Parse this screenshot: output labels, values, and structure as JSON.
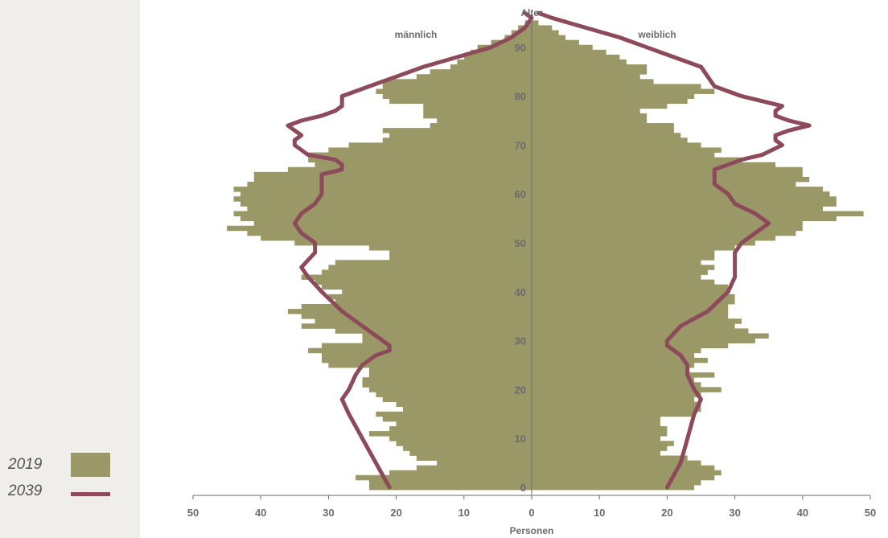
{
  "legend": {
    "items": [
      {
        "label": "2019",
        "kind": "bar",
        "color": "#9a9866"
      },
      {
        "label": "2039",
        "kind": "line",
        "color": "#8c4a5a"
      }
    ]
  },
  "chart_data": {
    "type": "bar",
    "orientation": "horizontal-butterfly",
    "title": "Alter",
    "xlabel": "Personen",
    "ylabel": "Alter",
    "left_group": "männlich",
    "right_group": "weiblich",
    "x_ticks": [
      "50",
      "40",
      "30",
      "20",
      "10",
      "0",
      "10",
      "20",
      "30",
      "40",
      "50"
    ],
    "xlim": [
      -50,
      50
    ],
    "y_ticks": [
      "0",
      "10",
      "20",
      "30",
      "40",
      "50",
      "60",
      "70",
      "80",
      "90"
    ],
    "ylim": [
      0,
      97
    ],
    "grid": false,
    "legend_position": "bottom-left",
    "colors": {
      "bars_2019": "#9a9866",
      "line_2039": "#8c4a5a",
      "axis": "#6b6b6b"
    },
    "bars_2019": {
      "ages": [
        0,
        1,
        2,
        3,
        4,
        5,
        6,
        7,
        8,
        9,
        10,
        11,
        12,
        13,
        14,
        15,
        16,
        17,
        18,
        19,
        20,
        21,
        22,
        23,
        24,
        25,
        26,
        27,
        28,
        29,
        30,
        31,
        32,
        33,
        34,
        35,
        36,
        37,
        38,
        39,
        40,
        41,
        42,
        43,
        44,
        45,
        46,
        47,
        48,
        49,
        50,
        51,
        52,
        53,
        54,
        55,
        56,
        57,
        58,
        59,
        60,
        61,
        62,
        63,
        64,
        65,
        66,
        67,
        68,
        69,
        70,
        71,
        72,
        73,
        74,
        75,
        76,
        77,
        78,
        79,
        80,
        81,
        82,
        83,
        84,
        85,
        86,
        87,
        88,
        89,
        90,
        91,
        92,
        93,
        94,
        95
      ],
      "male": [
        24,
        24,
        26,
        21,
        17,
        14,
        17,
        18,
        19,
        20,
        21,
        24,
        21,
        20,
        22,
        23,
        19,
        20,
        22,
        23,
        24,
        25,
        25,
        24,
        24,
        30,
        31,
        31,
        33,
        31,
        25,
        25,
        29,
        34,
        32,
        34,
        36,
        34,
        29,
        30,
        28,
        31,
        32,
        34,
        31,
        30,
        29,
        21,
        21,
        24,
        35,
        40,
        42,
        45,
        41,
        43,
        44,
        42,
        43,
        44,
        43,
        44,
        42,
        41,
        41,
        36,
        32,
        33,
        33,
        30,
        27,
        22,
        21,
        22,
        15,
        14,
        16,
        16,
        16,
        21,
        22,
        23,
        22,
        22,
        17,
        15,
        12,
        11,
        10,
        9,
        8,
        6,
        4,
        3,
        2,
        1
      ],
      "female": [
        24,
        25,
        27,
        28,
        27,
        25,
        23,
        19,
        20,
        21,
        19,
        20,
        20,
        19,
        19,
        24,
        25,
        25,
        24,
        25,
        28,
        25,
        24,
        27,
        23,
        24,
        26,
        24,
        25,
        29,
        33,
        35,
        32,
        30,
        31,
        29,
        29,
        29,
        30,
        30,
        29,
        29,
        27,
        25,
        26,
        27,
        25,
        27,
        27,
        30,
        33,
        36,
        39,
        40,
        40,
        45,
        49,
        43,
        45,
        45,
        44,
        43,
        39,
        41,
        40,
        40,
        36,
        31,
        27,
        28,
        25,
        23,
        22,
        21,
        21,
        17,
        17,
        16,
        20,
        23,
        24,
        27,
        25,
        18,
        16,
        17,
        17,
        14,
        13,
        11,
        9,
        7,
        5,
        4,
        3,
        1
      ]
    },
    "line_2039": {
      "ages": [
        0,
        5,
        10,
        15,
        18,
        20,
        23,
        25,
        27,
        28,
        29,
        30,
        33,
        36,
        40,
        43,
        45,
        48,
        50,
        52,
        54,
        56,
        58,
        60,
        62,
        64,
        65,
        66,
        67,
        68,
        70,
        71,
        72,
        73,
        74,
        75,
        76,
        77,
        78,
        79,
        80,
        81,
        82,
        84,
        86,
        88,
        90,
        92,
        94,
        96,
        97
      ],
      "male": [
        -21,
        -23,
        -25,
        -27,
        -28,
        -27,
        -26,
        -25,
        -23,
        -21,
        -21,
        -22,
        -25,
        -28,
        -31,
        -33,
        -34,
        -32,
        -32,
        -34,
        -35,
        -34,
        -32,
        -31,
        -31,
        -31,
        -28,
        -28,
        -29,
        -33,
        -35,
        -35,
        -34,
        -35,
        -36,
        -34,
        -31,
        -29,
        -28,
        -28,
        -28,
        -26,
        -24,
        -20,
        -16,
        -11,
        -6,
        -3,
        -1,
        0,
        -1
      ],
      "female": [
        20,
        22,
        23,
        24,
        25,
        24,
        23,
        23,
        22,
        21,
        20,
        20,
        22,
        26,
        29,
        30,
        30,
        30,
        31,
        33,
        35,
        33,
        30,
        29,
        27,
        27,
        27,
        29,
        31,
        34,
        37,
        36,
        36,
        38,
        41,
        38,
        36,
        36,
        37,
        34,
        31,
        29,
        27,
        26,
        25,
        21,
        17,
        13,
        8,
        3,
        1
      ]
    }
  }
}
